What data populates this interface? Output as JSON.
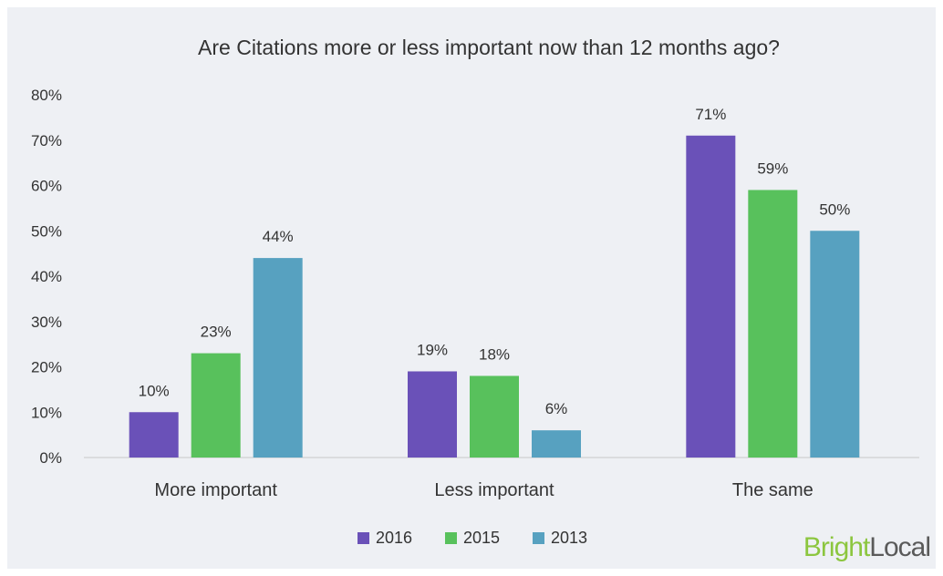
{
  "chart_data": {
    "type": "bar",
    "title": "Are Citations more or less important now than 12 months ago?",
    "xlabel": "",
    "ylabel": "",
    "categories": [
      "More important",
      "Less important",
      "The same"
    ],
    "series": [
      {
        "name": "2016",
        "values": [
          10,
          19,
          71
        ],
        "labels": [
          "10%",
          "19%",
          "71%"
        ],
        "color": "#6a51b8"
      },
      {
        "name": "2015",
        "values": [
          23,
          18,
          59
        ],
        "labels": [
          "23%",
          "18%",
          "59%"
        ],
        "color": "#58c15c"
      },
      {
        "name": "2013",
        "values": [
          44,
          6,
          50
        ],
        "labels": [
          "44%",
          "6%",
          "50%"
        ],
        "color": "#57a1c0"
      }
    ],
    "ylim": [
      0,
      80
    ],
    "yticks": [
      "0%",
      "10%",
      "20%",
      "30%",
      "40%",
      "50%",
      "60%",
      "70%",
      "80%"
    ],
    "grid": false,
    "legend_position": "bottom"
  },
  "branding": {
    "logo_part1": "Bright",
    "logo_part2": "Local"
  }
}
